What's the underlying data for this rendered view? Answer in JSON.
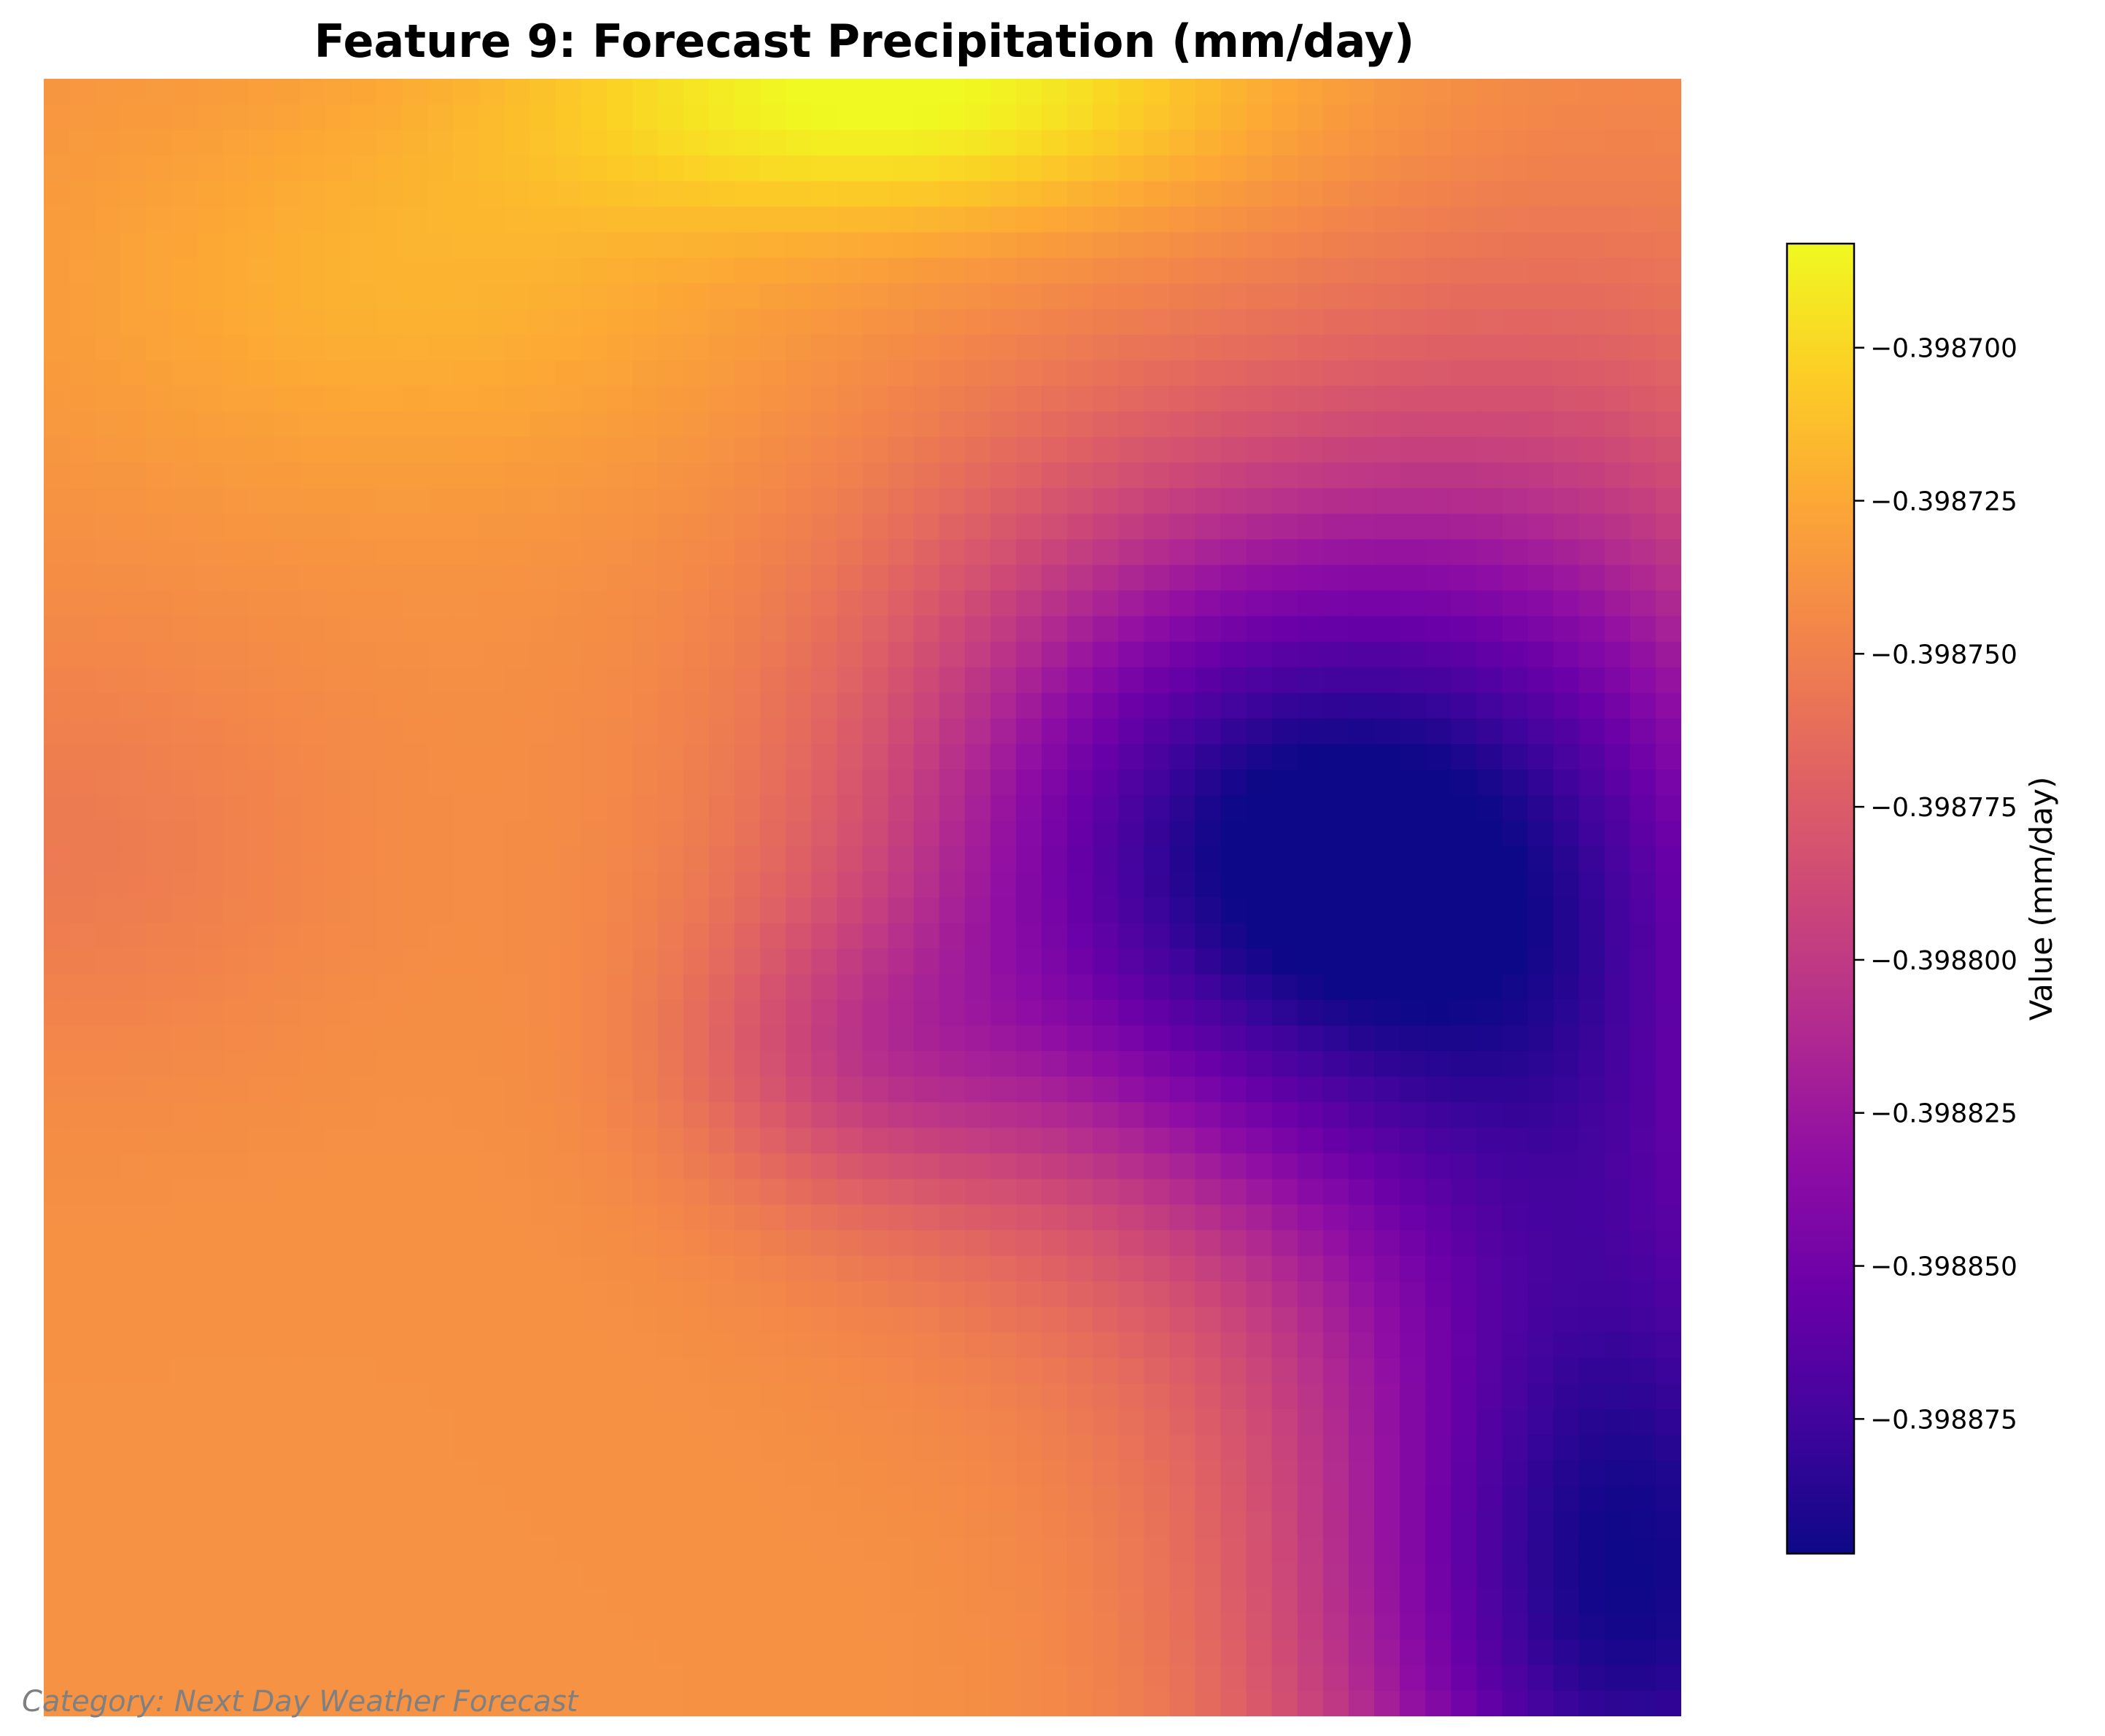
{
  "chart_data": {
    "type": "heatmap",
    "title": "Feature 9: Forecast Precipitation (mm/day)",
    "colormap": "plasma",
    "rows": 64,
    "cols": 64,
    "value_range": [
      -0.398897,
      -0.398683
    ],
    "grid": false,
    "axes_visible": false,
    "field_description": "high values at top-center (yellow), elevated orange across left and bottom-left, low purple basin at center-right, lowest dark-blue at bottom-right corner",
    "colorbar": {
      "label": "Value (mm/day)",
      "placement": "right",
      "ticks": [
        {
          "value": -0.3987,
          "label": "−0.398700"
        },
        {
          "value": -0.398725,
          "label": "−0.398725"
        },
        {
          "value": -0.39875,
          "label": "−0.398750"
        },
        {
          "value": -0.398775,
          "label": "−0.398775"
        },
        {
          "value": -0.3988,
          "label": "−0.398800"
        },
        {
          "value": -0.398825,
          "label": "−0.398825"
        },
        {
          "value": -0.39885,
          "label": "−0.398850"
        },
        {
          "value": -0.398875,
          "label": "−0.398875"
        }
      ]
    },
    "annotation": "Category: Next Day Weather Forecast"
  }
}
